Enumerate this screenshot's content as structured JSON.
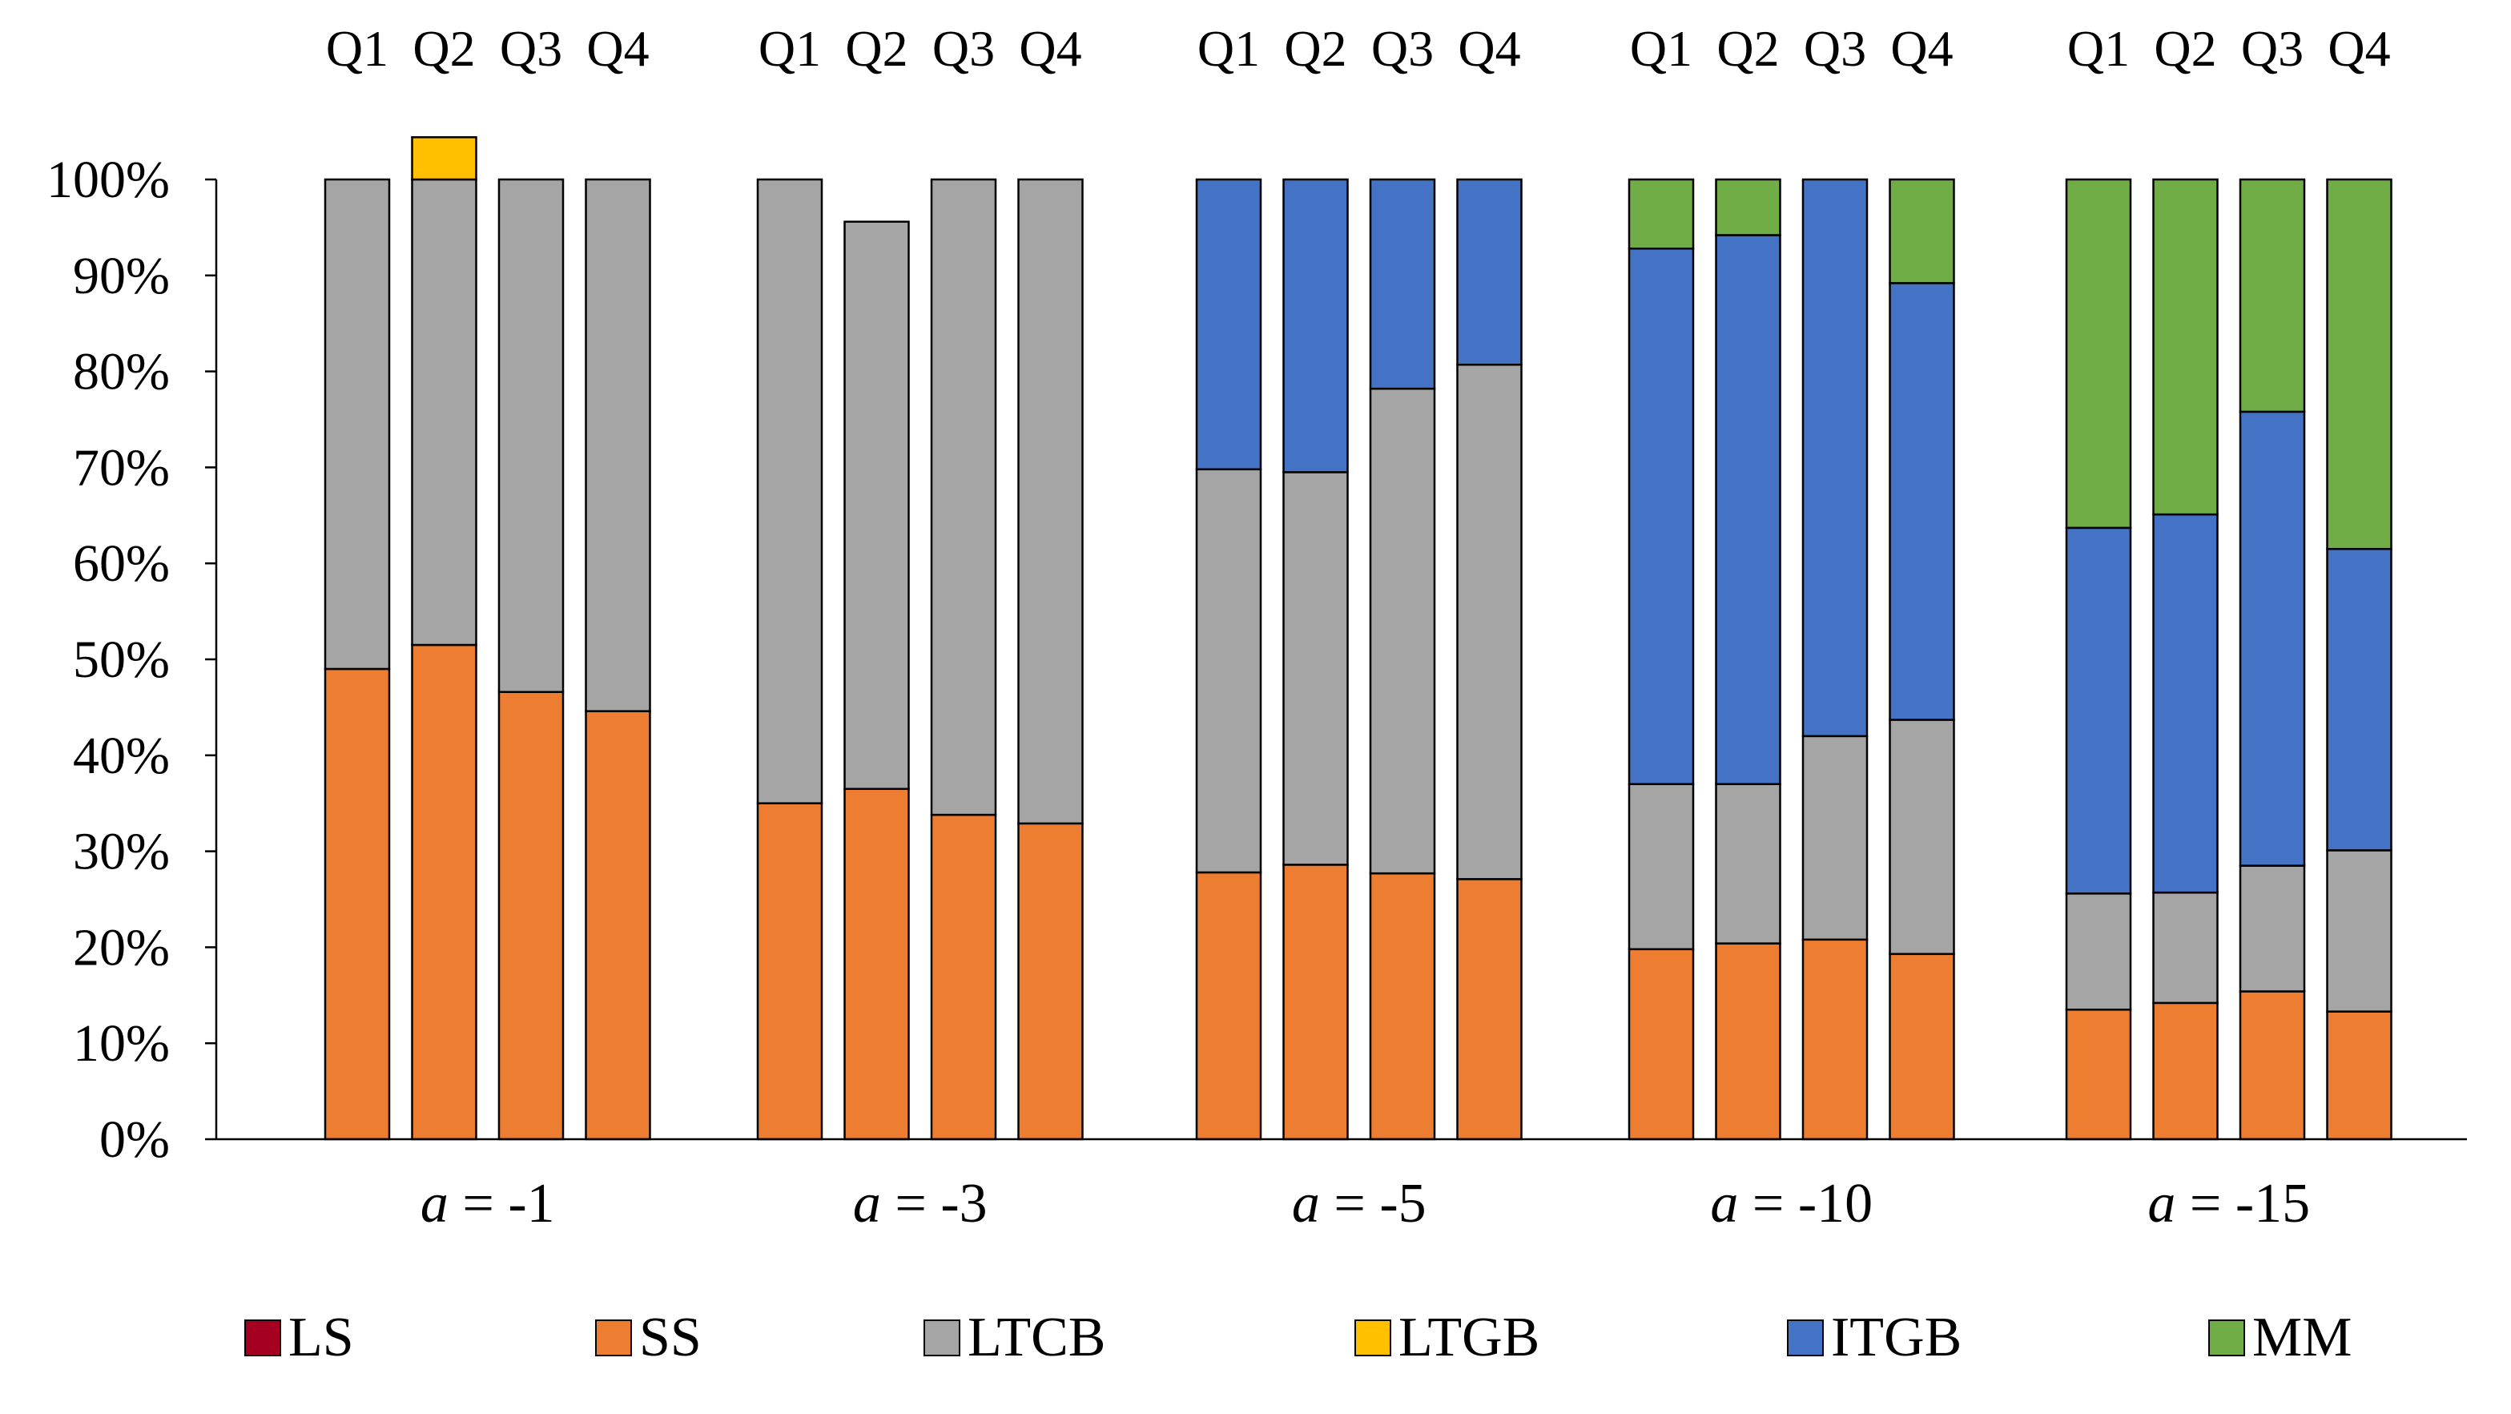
{
  "chart_data": {
    "type": "bar",
    "stacked": true,
    "percent": true,
    "title": "",
    "xlabel": "",
    "ylabel": "",
    "ylim": [
      0,
      100
    ],
    "y_ticks": [
      "0%",
      "10%",
      "20%",
      "30%",
      "40%",
      "50%",
      "60%",
      "70%",
      "80%",
      "90%",
      "100%"
    ],
    "quarters": [
      "Q1",
      "Q2",
      "Q3",
      "Q4"
    ],
    "groups": [
      {
        "italic": "a",
        "suffix": " = -1"
      },
      {
        "italic": "a",
        "suffix": " = -3"
      },
      {
        "italic": "a",
        "suffix": " = -5"
      },
      {
        "italic": "a",
        "suffix": " = -10"
      },
      {
        "italic": "a",
        "suffix": " = -15"
      }
    ],
    "categories": [
      "a = -1 Q1",
      "a = -1 Q2",
      "a = -1 Q3",
      "a = -1 Q4",
      "a = -3 Q1",
      "a = -3 Q2",
      "a = -3 Q3",
      "a = -3 Q4",
      "a = -5 Q1",
      "a = -5 Q2",
      "a = -5 Q3",
      "a = -5 Q4",
      "a = -10 Q1",
      "a = -10 Q2",
      "a = -10 Q3",
      "a = -10 Q4",
      "a = -15 Q1",
      "a = -15 Q2",
      "a = -15 Q3",
      "a = -15 Q4"
    ],
    "series": [
      {
        "name": "LS",
        "color": "#A50021",
        "values": [
          0,
          0,
          0,
          0,
          0,
          0,
          0,
          0,
          0,
          0,
          0,
          0,
          0,
          0,
          0,
          0,
          0,
          0,
          0,
          0
        ]
      },
      {
        "name": "SS",
        "color": "#ED7D31",
        "values": [
          49,
          51.5,
          46.6,
          44.6,
          35,
          36.5,
          33.8,
          32.9,
          27.8,
          28.6,
          27.7,
          27.1,
          19.8,
          20.4,
          20.8,
          19.3,
          13.5,
          14.2,
          15.4,
          13.3
        ]
      },
      {
        "name": "LTCB",
        "color": "#A5A5A5",
        "values": [
          51,
          48.5,
          53.4,
          55.4,
          65,
          59.1,
          66.2,
          67.1,
          42,
          40.9,
          50.5,
          53.6,
          17.2,
          16.6,
          21.2,
          24.4,
          12.1,
          11.5,
          13.1,
          16.8
        ]
      },
      {
        "name": "LTGB",
        "color": "#FFC000",
        "values": [
          0,
          4.4,
          0,
          0,
          0,
          0,
          0,
          0,
          0,
          0,
          0,
          0,
          0,
          0,
          0,
          0,
          0,
          0,
          0,
          0
        ]
      },
      {
        "name": "ITGB",
        "color": "#4472C4",
        "values": [
          0,
          0,
          0,
          0,
          0,
          0,
          0,
          0,
          30.2,
          30.5,
          21.8,
          19.3,
          55.8,
          57.2,
          58,
          45.5,
          38.1,
          39.4,
          47.3,
          31.4
        ]
      },
      {
        "name": "MM",
        "color": "#70AD47",
        "values": [
          0,
          0,
          0,
          0,
          0,
          0,
          0,
          0,
          0,
          0,
          0,
          0,
          7.2,
          5.8,
          0,
          10.8,
          36.3,
          34.9,
          24.2,
          38.5
        ]
      }
    ]
  }
}
